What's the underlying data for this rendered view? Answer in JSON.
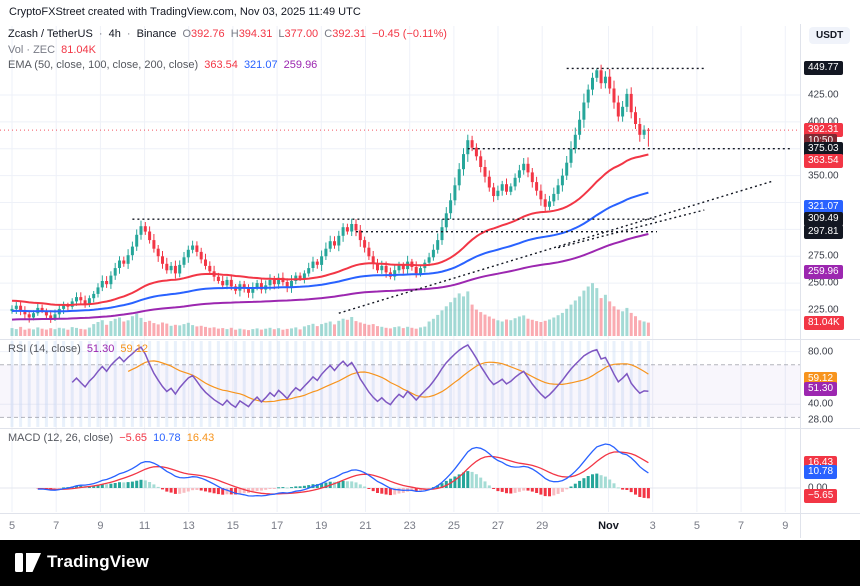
{
  "header": {
    "title": "CryptoFXStreet created with TradingView.com, Nov 03, 2025 11:49 UTC"
  },
  "symbol_legend": {
    "name": "Zcash / TetherUS",
    "sep": "·",
    "interval": "4h",
    "exchange": "Binance",
    "o_label": "O",
    "o": "392.76",
    "h_label": "H",
    "h": "394.31",
    "l_label": "L",
    "l": "377.00",
    "c_label": "C",
    "c": "392.31",
    "change": "−0.45 (−0.11%)"
  },
  "volume_legend": {
    "label": "Vol · ZEC",
    "value": "81.04K"
  },
  "ema_legend": {
    "label": "EMA (50, close, 100, close, 200, close)",
    "ema50": "363.54",
    "ema100": "321.07",
    "ema200": "259.96"
  },
  "rsi_legend": {
    "label": "RSI (14, close)",
    "rsi": "51.30",
    "ma": "59.12"
  },
  "macd_legend": {
    "label": "MACD (12, 26, close)",
    "hist": "−5.65",
    "macd": "10.78",
    "signal": "16.43"
  },
  "footer": {
    "brand": "TradingView"
  },
  "colors": {
    "up": "#26a69a",
    "down": "#f23645",
    "ema50": "#f23645",
    "ema100": "#2962ff",
    "ema200": "#9c27b0",
    "rsi": "#7e57c2",
    "rsi_ma": "#f7941d",
    "macd_line": "#2962ff",
    "signal_line": "#f23645",
    "hist_up": "#26a69a",
    "hist_up_weak": "#a5dcd5",
    "hist_down": "#f23645",
    "hist_down_weak": "#f8bcc1",
    "grid": "#eef1f8",
    "dark_badge": "#131722",
    "countdown_badge": "#7e2a33",
    "red": "#f23645",
    "blue": "#2962ff",
    "purple": "#9c27b0",
    "orange": "#f7941d"
  },
  "price_axis": {
    "currency": "USDT",
    "plain": [
      {
        "text": "425.00",
        "pane": "price",
        "value": 425
      },
      {
        "text": "400.00",
        "pane": "price",
        "value": 400
      },
      {
        "text": "350.00",
        "pane": "price",
        "value": 350
      },
      {
        "text": "275.00",
        "pane": "price",
        "value": 275
      },
      {
        "text": "250.00",
        "pane": "price",
        "value": 250
      },
      {
        "text": "225.00",
        "pane": "price",
        "value": 225
      },
      {
        "text": "80.00",
        "pane": "rsi",
        "value": 80
      },
      {
        "text": "40.00",
        "pane": "rsi",
        "value": 40
      },
      {
        "text": "28.00",
        "pane": "rsi",
        "value": 28
      },
      {
        "text": "0.00",
        "pane": "macd",
        "value": 0
      }
    ],
    "badges": [
      {
        "text": "449.77",
        "bg": "dark",
        "pane": "price",
        "value": 449.77
      },
      {
        "text": "392.31",
        "bg": "red",
        "pane": "price",
        "value": 392.31
      },
      {
        "text": "10:50",
        "bg": "countdown",
        "pane": "price_below",
        "value": 392.31
      },
      {
        "text": "375.03",
        "bg": "dark",
        "pane": "price",
        "value": 375.03
      },
      {
        "text": "363.54",
        "bg": "red",
        "pane": "price",
        "value": 363.54
      },
      {
        "text": "321.07",
        "bg": "blue",
        "pane": "price",
        "value": 321.07
      },
      {
        "text": "309.49",
        "bg": "dark",
        "pane": "price",
        "value": 309.49
      },
      {
        "text": "297.81",
        "bg": "dark",
        "pane": "price",
        "value": 297.81
      },
      {
        "text": "259.96",
        "bg": "purple",
        "pane": "price",
        "value": 259.96
      },
      {
        "text": "81.04K",
        "bg": "red",
        "pane": "volume",
        "value": 81.04
      },
      {
        "text": "59.12",
        "bg": "orange",
        "pane": "rsi",
        "value": 59.12
      },
      {
        "text": "51.30",
        "bg": "purple",
        "pane": "rsi",
        "value": 51.3
      },
      {
        "text": "16.43",
        "bg": "red",
        "pane": "macd",
        "value": 16.43
      },
      {
        "text": "10.78",
        "bg": "blue",
        "pane": "macd",
        "value": 10.78
      },
      {
        "text": "−5.65",
        "bg": "red",
        "pane": "macd",
        "value": -5.65
      }
    ]
  },
  "time_axis": {
    "labels": [
      {
        "t": "5",
        "d": 0
      },
      {
        "t": "7",
        "d": 2
      },
      {
        "t": "9",
        "d": 4
      },
      {
        "t": "11",
        "d": 6
      },
      {
        "t": "13",
        "d": 8
      },
      {
        "t": "15",
        "d": 10
      },
      {
        "t": "17",
        "d": 12
      },
      {
        "t": "19",
        "d": 14
      },
      {
        "t": "21",
        "d": 16
      },
      {
        "t": "23",
        "d": 18
      },
      {
        "t": "25",
        "d": 20
      },
      {
        "t": "27",
        "d": 22
      },
      {
        "t": "29",
        "d": 24
      },
      {
        "t": "Nov",
        "d": 27,
        "bold": true
      },
      {
        "t": "3",
        "d": 29
      },
      {
        "t": "5",
        "d": 31
      },
      {
        "t": "7",
        "d": 33
      },
      {
        "t": "9",
        "d": 35
      }
    ]
  },
  "chart_data": {
    "type": "candlestick",
    "title": "Zcash / TetherUS 4h Binance",
    "symbol": "ZEC/USDT",
    "interval": "4h",
    "exchange": "Binance",
    "date_range": "Oct 5 - Nov 3, 2025",
    "ylabel": "Price (USDT)",
    "visible_price_range": [
      210,
      480
    ],
    "last_candle": {
      "o": 392.76,
      "h": 394.31,
      "l": 377.0,
      "c": 392.31,
      "change": -0.45,
      "change_pct": -0.11
    },
    "highest_high": 449.77,
    "lowest_low": 213,
    "closes": [
      226,
      229,
      224,
      221,
      218,
      222,
      227,
      224,
      220,
      217,
      221,
      226,
      230,
      228,
      233,
      237,
      234,
      231,
      236,
      240,
      246,
      252,
      249,
      257,
      264,
      271,
      268,
      276,
      284,
      295,
      303,
      298,
      290,
      282,
      275,
      268,
      262,
      266,
      259,
      267,
      274,
      281,
      285,
      279,
      272,
      266,
      261,
      256,
      252,
      248,
      253,
      247,
      243,
      249,
      245,
      241,
      246,
      250,
      244,
      248,
      253,
      249,
      255,
      251,
      246,
      252,
      257,
      254,
      259,
      264,
      270,
      267,
      275,
      282,
      289,
      285,
      294,
      302,
      298,
      305,
      299,
      290,
      283,
      275,
      268,
      262,
      266,
      260,
      256,
      262,
      267,
      263,
      270,
      265,
      259,
      264,
      269,
      274,
      281,
      290,
      302,
      315,
      327,
      341,
      356,
      370,
      383,
      376,
      368,
      358,
      349,
      339,
      331,
      336,
      342,
      335,
      340,
      348,
      355,
      361,
      353,
      344,
      336,
      328,
      321,
      326,
      333,
      341,
      350,
      362,
      375,
      388,
      402,
      418,
      430,
      441,
      448,
      436,
      442,
      431,
      418,
      405,
      414,
      426,
      409,
      398,
      388,
      392.76,
      392.31
    ],
    "volumes_k": [
      48,
      42,
      55,
      38,
      45,
      40,
      52,
      44,
      39,
      47,
      41,
      50,
      46,
      38,
      54,
      49,
      43,
      40,
      51,
      72,
      85,
      96,
      68,
      90,
      104,
      112,
      88,
      95,
      120,
      135,
      110,
      85,
      92,
      78,
      70,
      82,
      75,
      62,
      68,
      64,
      72,
      80,
      66,
      58,
      62,
      55,
      50,
      53,
      45,
      48,
      42,
      50,
      38,
      44,
      40,
      36,
      42,
      46,
      39,
      44,
      50,
      41,
      47,
      38,
      43,
      46,
      52,
      40,
      58,
      66,
      74,
      60,
      72,
      80,
      88,
      70,
      92,
      105,
      98,
      115,
      90,
      82,
      74,
      68,
      72,
      60,
      56,
      50,
      46,
      54,
      58,
      48,
      56,
      50,
      44,
      52,
      57,
      88,
      104,
      128,
      155,
      180,
      205,
      232,
      258,
      240,
      270,
      190,
      160,
      145,
      130,
      118,
      105,
      95,
      88,
      100,
      96,
      108,
      118,
      125,
      105,
      98,
      90,
      85,
      92,
      100,
      112,
      126,
      140,
      165,
      190,
      215,
      240,
      275,
      300,
      320,
      290,
      230,
      250,
      210,
      180,
      160,
      150,
      170,
      140,
      120,
      95,
      88,
      81.04
    ],
    "indicators": {
      "ema50": 363.54,
      "ema100": 321.07,
      "ema200": 259.96,
      "rsi": 51.3,
      "rsi_ma": 59.12,
      "rsi_bands": [
        70,
        30
      ],
      "macd": 10.78,
      "macd_signal": 16.43,
      "macd_hist": -5.65
    },
    "levels": {
      "resistance": 449.77,
      "breakout": 375.03,
      "support1": 309.49,
      "support2": 297.81,
      "current_price": 392.31
    },
    "drawings": [
      {
        "type": "hline",
        "price": 449.77,
        "bar1": 129,
        "bar2": 161
      },
      {
        "type": "hline",
        "price": 375.03,
        "bar1": 106,
        "bar2": 181
      },
      {
        "type": "hline",
        "price": 309.49,
        "bar1": 28,
        "bar2": 150
      },
      {
        "type": "hline",
        "price": 297.81,
        "bar1": 80,
        "bar2": 150
      },
      {
        "type": "trend",
        "bar1": 76,
        "price1": 222,
        "bar2": 177,
        "price2": 345
      },
      {
        "type": "trend",
        "bar1": 127,
        "price1": 283,
        "bar2": 161,
        "price2": 318
      }
    ]
  }
}
